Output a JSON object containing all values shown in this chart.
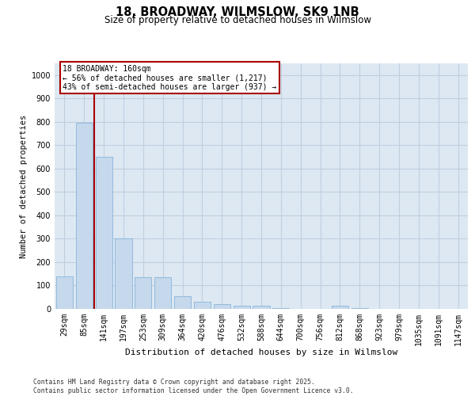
{
  "title1": "18, BROADWAY, WILMSLOW, SK9 1NB",
  "title2": "Size of property relative to detached houses in Wilmslow",
  "xlabel": "Distribution of detached houses by size in Wilmslow",
  "ylabel": "Number of detached properties",
  "categories": [
    "29sqm",
    "85sqm",
    "141sqm",
    "197sqm",
    "253sqm",
    "309sqm",
    "364sqm",
    "420sqm",
    "476sqm",
    "532sqm",
    "588sqm",
    "644sqm",
    "700sqm",
    "756sqm",
    "812sqm",
    "868sqm",
    "923sqm",
    "979sqm",
    "1035sqm",
    "1091sqm",
    "1147sqm"
  ],
  "values": [
    140,
    795,
    650,
    300,
    135,
    135,
    55,
    30,
    20,
    15,
    15,
    5,
    0,
    0,
    15,
    5,
    0,
    0,
    0,
    0,
    0
  ],
  "bar_color": "#c5d8ec",
  "bar_edge_color": "#89b4d9",
  "property_line_x": 1.5,
  "property_line_color": "#aa0000",
  "annotation_text": "18 BROADWAY: 160sqm\n← 56% of detached houses are smaller (1,217)\n43% of semi-detached houses are larger (937) →",
  "annotation_box_color": "#aa0000",
  "annotation_fontsize": 7.0,
  "ylim": [
    0,
    1050
  ],
  "yticks": [
    0,
    100,
    200,
    300,
    400,
    500,
    600,
    700,
    800,
    900,
    1000
  ],
  "grid_color": "#c0cfe0",
  "background_color": "#dde8f2",
  "footer_text": "Contains HM Land Registry data © Crown copyright and database right 2025.\nContains public sector information licensed under the Open Government Licence v3.0.",
  "title1_fontsize": 10.5,
  "title2_fontsize": 8.5,
  "xlabel_fontsize": 8,
  "ylabel_fontsize": 7.5,
  "tick_fontsize": 7
}
